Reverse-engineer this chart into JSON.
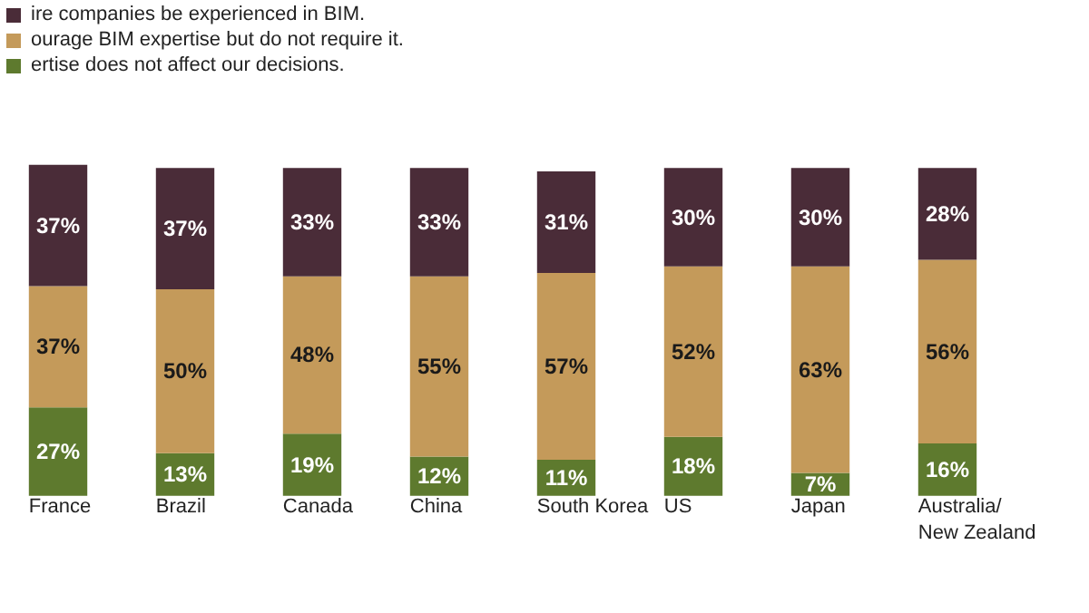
{
  "chart_data": {
    "type": "bar",
    "stacked": true,
    "legend": "top left",
    "categories": [
      "France",
      "Brazil",
      "Canada",
      "China",
      "South Korea",
      "US",
      "Japan",
      "Australia/\nNew Zealand"
    ],
    "series": [
      {
        "name": "ertise does not affect our decisions.",
        "color": "#5e7a2e",
        "values": [
          27,
          13,
          19,
          12,
          11,
          18,
          7,
          16
        ],
        "value_labels": [
          "27%",
          "13%",
          "19%",
          "12%",
          "11%",
          "18%",
          "7%",
          "16%"
        ]
      },
      {
        "name": "ourage BIM expertise but do not require it.",
        "color": "#c49a5a",
        "values": [
          37,
          50,
          48,
          55,
          57,
          52,
          63,
          56
        ],
        "value_labels": [
          "37%",
          "50%",
          "48%",
          "55%",
          "57%",
          "52%",
          "63%",
          "56%"
        ]
      },
      {
        "name": "ire companies be experienced in BIM.",
        "color": "#4a2c38",
        "values": [
          37,
          37,
          33,
          33,
          31,
          30,
          30,
          28
        ],
        "value_labels": [
          "37%",
          "37%",
          "33%",
          "33%",
          "31%",
          "30%",
          "30%",
          "28%"
        ]
      }
    ]
  }
}
